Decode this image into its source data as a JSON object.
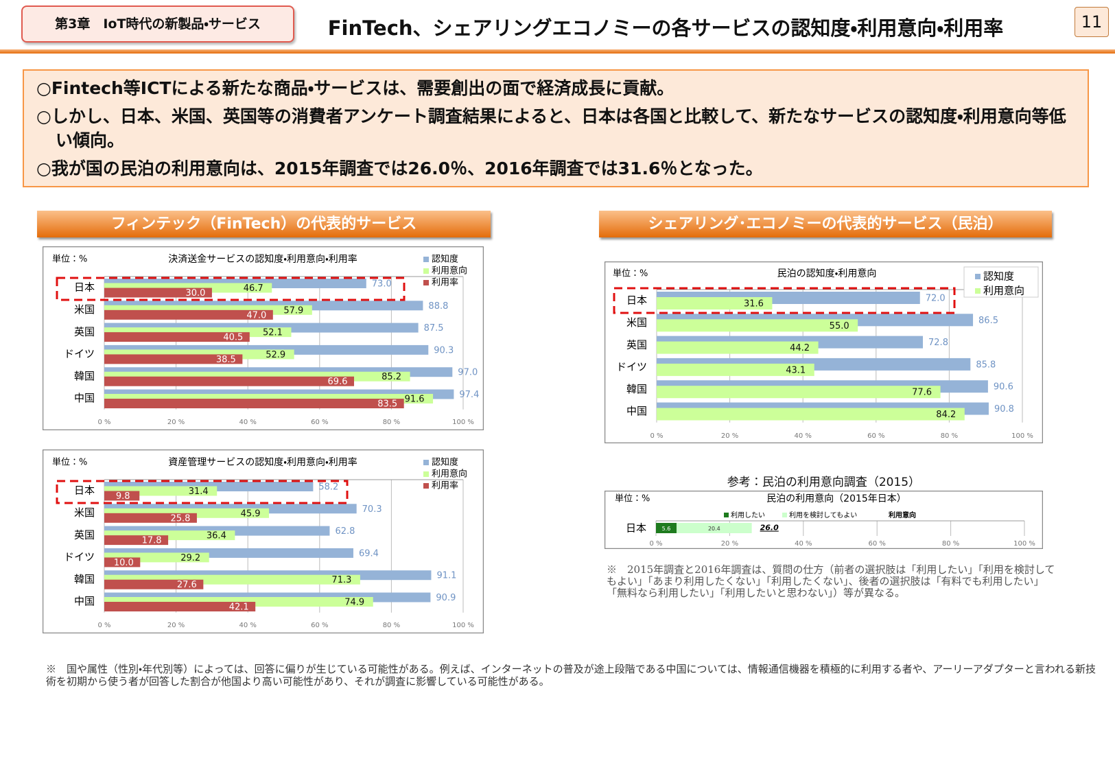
{
  "header": {
    "chapter": "第3章　IoT時代の新製品・サービス",
    "title": "FinTech、シェアリングエコノミーの各サービスの認知度・利用意向・利用率",
    "page": "11"
  },
  "bullets": [
    "○Fintech等ICTによる新たな商品・サービスは、需要創出の面で経済成長に貢献。",
    "○しかし、日本、米国、英国等の消費者アンケート調査結果によると、日本は各国と比較して、新たなサービスの認知度・利用意向等低い傾向。",
    "○我が国の民泊の利用意向は、2015年調査では26.0％、2016年調査では31.6％となった。"
  ],
  "sections": {
    "fintech": "フィンテック（FinTech）の代表的サービス",
    "sharing": "シェアリング･エコノミーの代表的サービス（民泊）",
    "reference": "参考：民泊の利用意向調査（2015）"
  },
  "notes": {
    "sharing": "※　2015年調査と2016年調査は、質問の仕方（前者の選択肢は「利用したい」「利用を検討してもよい」「あまり利用したくない」「利用したくない」、後者の選択肢は「有料でも利用したい」「無料なら利用したい」「利用したいと思わない」）等が異なる。",
    "footer": "※　国や属性（性別・年代別等）によっては、回答に偏りが生じている可能性がある。例えば、インターネットの普及が途上段階である中国については、情報通信機器を積極的に利用する者や、アーリーアダプターと言われる新技術を初期から使う者が回答した割合が他国より高い可能性があり、それが調査に影響している可能性がある。"
  },
  "chart_data": [
    {
      "type": "bar",
      "orientation": "horizontal",
      "title": "決済送金サービスの認知度・利用意向・利用率",
      "unit_label": "単位：%",
      "categories": [
        "日本",
        "米国",
        "英国",
        "ドイツ",
        "韓国",
        "中国"
      ],
      "series": [
        {
          "name": "認知度",
          "color": "#95b3d7",
          "values": [
            73.0,
            88.8,
            87.5,
            90.3,
            97.0,
            97.4
          ],
          "value_labels": [
            "73.0",
            "88.8",
            "87.5",
            "90.3",
            "97.0",
            "97.4"
          ]
        },
        {
          "name": "利用意向",
          "color": "#ccff99",
          "values": [
            46.7,
            57.9,
            52.1,
            52.9,
            85.2,
            91.6
          ],
          "value_labels": [
            "46.7",
            "57.9",
            "52.1",
            "52.9",
            "85.2",
            "91.6"
          ]
        },
        {
          "name": "利用率",
          "color": "#c0504d",
          "values": [
            30.0,
            47.0,
            40.5,
            38.5,
            69.6,
            83.5
          ],
          "value_labels": [
            "30.0",
            "47.0",
            "40.5",
            "38.5",
            "69.6",
            "83.5"
          ]
        }
      ],
      "xlim": [
        0,
        100
      ],
      "xticks": [
        {
          "value": 0,
          "label": "0 %"
        },
        {
          "value": 20,
          "label": "20 %"
        },
        {
          "value": 40,
          "label": "40 %"
        },
        {
          "value": 60,
          "label": "60 %"
        },
        {
          "value": 80,
          "label": "80 %"
        },
        {
          "value": 100,
          "label": "100 %"
        }
      ],
      "grid": true
    },
    {
      "type": "bar",
      "orientation": "horizontal",
      "title": "資産管理サービスの認知度・利用意向・利用率",
      "unit_label": "単位：%",
      "categories": [
        "日本",
        "米国",
        "英国",
        "ドイツ",
        "韓国",
        "中国"
      ],
      "series": [
        {
          "name": "認知度",
          "color": "#95b3d7",
          "values": [
            58.2,
            70.3,
            62.8,
            69.4,
            91.1,
            90.9
          ],
          "value_labels": [
            "58.2",
            "70.3",
            "62.8",
            "69.4",
            "91.1",
            "90.9"
          ]
        },
        {
          "name": "利用意向",
          "color": "#ccff99",
          "values": [
            31.4,
            45.9,
            36.4,
            29.2,
            71.3,
            74.9
          ],
          "value_labels": [
            "31.4",
            "45.9",
            "36.4",
            "29.2",
            "71.3",
            "74.9"
          ]
        },
        {
          "name": "利用率",
          "color": "#c0504d",
          "values": [
            9.8,
            25.8,
            17.8,
            10.0,
            27.6,
            42.1
          ],
          "value_labels": [
            "9.8",
            "25.8",
            "17.8",
            "10.0",
            "27.6",
            "42.1"
          ]
        }
      ],
      "xlim": [
        0,
        100
      ],
      "xticks": [
        {
          "value": 0,
          "label": "0 %"
        },
        {
          "value": 20,
          "label": "20 %"
        },
        {
          "value": 40,
          "label": "40 %"
        },
        {
          "value": 60,
          "label": "60 %"
        },
        {
          "value": 80,
          "label": "80 %"
        },
        {
          "value": 100,
          "label": "100 %"
        }
      ],
      "grid": true
    },
    {
      "type": "bar",
      "orientation": "horizontal",
      "title": "民泊の認知度・利用意向",
      "unit_label": "単位：%",
      "categories": [
        "日本",
        "米国",
        "英国",
        "ドイツ",
        "韓国",
        "中国"
      ],
      "series": [
        {
          "name": "認知度",
          "color": "#95b3d7",
          "values": [
            72.0,
            86.5,
            72.8,
            85.8,
            90.6,
            90.8
          ],
          "value_labels": [
            "72.0",
            "86.5",
            "72.8",
            "85.8",
            "90.6",
            "90.8"
          ]
        },
        {
          "name": "利用意向",
          "color": "#ccff99",
          "values": [
            31.6,
            55.0,
            44.2,
            43.1,
            77.6,
            84.2
          ],
          "value_labels": [
            "31.6",
            "55.0",
            "44.2",
            "43.1",
            "77.6",
            "84.2"
          ]
        }
      ],
      "xlim": [
        0,
        100
      ],
      "xticks": [
        {
          "value": 0,
          "label": "0 %"
        },
        {
          "value": 20,
          "label": "20 %"
        },
        {
          "value": 40,
          "label": "40 %"
        },
        {
          "value": 60,
          "label": "60 %"
        },
        {
          "value": 80,
          "label": "80 %"
        },
        {
          "value": 100,
          "label": "100 %"
        }
      ],
      "grid": true
    },
    {
      "type": "bar",
      "orientation": "horizontal",
      "stacked": true,
      "title": "民泊の利用意向（2015年日本）",
      "unit_label": "単位：%",
      "categories": [
        "日本"
      ],
      "series": [
        {
          "name": "利用したい",
          "color": "#1e7b1e",
          "values": [
            5.6
          ]
        },
        {
          "name": "利用を検討してもよい",
          "color": "#ccffcc",
          "values": [
            20.4
          ]
        }
      ],
      "total": {
        "name": "利用意向",
        "value": 26.0,
        "label": "26.0"
      },
      "xlim": [
        0,
        100
      ],
      "xticks": [
        {
          "value": 0,
          "label": "0 %"
        },
        {
          "value": 20,
          "label": "20 %"
        },
        {
          "value": 40,
          "label": "40 %"
        },
        {
          "value": 60,
          "label": "60 %"
        },
        {
          "value": 80,
          "label": "80 %"
        },
        {
          "value": 100,
          "label": "100 %"
        }
      ],
      "grid": true
    }
  ]
}
